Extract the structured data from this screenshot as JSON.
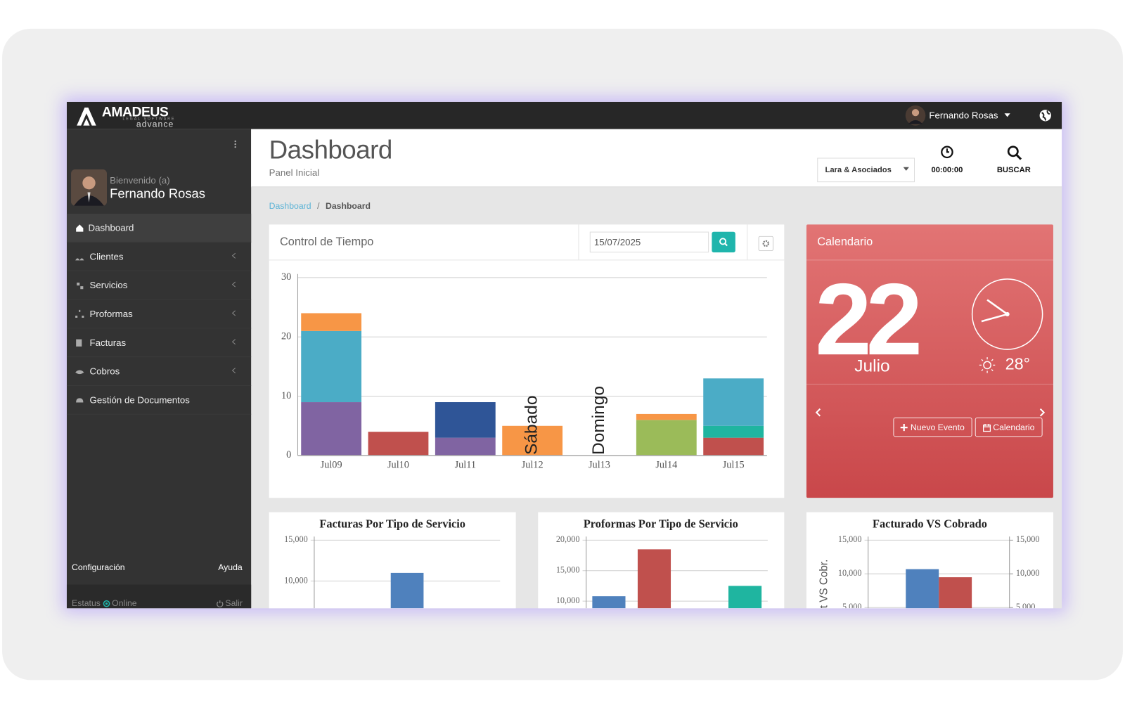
{
  "topbar": {
    "brand": "AMADEUS",
    "tagline": "LEGAL SOFTWARE",
    "edition": "advance",
    "user": "Fernando Rosas"
  },
  "sidebar": {
    "welcome": "Bienvenido (a)",
    "user": "Fernando Rosas",
    "menu": [
      "Dashboard",
      "Clientes",
      "Servicios",
      "Proformas",
      "Facturas",
      "Cobros",
      "Gestión de Documentos"
    ],
    "footer": {
      "settings": "Configuración",
      "help": "Ayuda",
      "status": "Estatus",
      "state": "Online",
      "logout": "Salir"
    }
  },
  "header": {
    "title": "Dashboard",
    "subtitle": "Panel Inicial",
    "company": "Lara & Asociados",
    "timer": "00:00:00",
    "search": "BUSCAR"
  },
  "breadcrumb": {
    "items": [
      "Dashboard",
      "Dashboard"
    ],
    "separator": "/"
  },
  "time_panel": {
    "title": "Control de Tiempo",
    "date": "15/07/2025"
  },
  "calendar": {
    "title": "Calendario",
    "day": 22,
    "month": "Julio",
    "temperature": "28°",
    "buttons": [
      "Nuevo Evento",
      "Calendario"
    ]
  },
  "chart_data": [
    {
      "type": "stacked_bar",
      "categories": [
        "Jul09",
        "Jul10",
        "Jul11",
        "Jul12",
        "Jul13",
        "Jul14",
        "Jul15"
      ],
      "series": [
        {
          "color": "#c0504d",
          "values": [
            null,
            4,
            null,
            null,
            null,
            null,
            3
          ]
        },
        {
          "color": "#8064a2",
          "values": [
            9,
            null,
            3,
            null,
            null,
            null,
            null
          ]
        },
        {
          "color": "#9bbb59",
          "values": [
            null,
            null,
            null,
            null,
            null,
            6,
            null
          ]
        },
        {
          "color": "#1fb5a0",
          "values": [
            null,
            null,
            null,
            null,
            null,
            null,
            2
          ]
        },
        {
          "color": "#4bacc6",
          "values": [
            12,
            null,
            null,
            null,
            null,
            null,
            8
          ]
        },
        {
          "color": "#2f5597",
          "values": [
            null,
            null,
            6,
            null,
            null,
            null,
            null
          ]
        },
        {
          "color": "#f79646",
          "values": [
            3,
            null,
            null,
            5,
            null,
            1,
            null
          ]
        }
      ],
      "ylim": [
        0,
        30
      ],
      "yticks": [
        0,
        10,
        20,
        30
      ],
      "grid": true,
      "annotations": [
        {
          "text": "Sábado",
          "x": "Jul12"
        },
        {
          "text": "Domingo",
          "x": "Jul13"
        }
      ]
    },
    {
      "type": "bar",
      "title": "Facturas Por Tipo de Servicio",
      "categories": [
        null,
        null,
        null
      ],
      "values": [
        null,
        11000,
        null
      ],
      "colors": [
        "#4f81bd",
        "#4f81bd",
        "#4f81bd"
      ],
      "ylim": [
        0,
        15000
      ],
      "yticks": [
        {
          "value": 10000,
          "label": "10,000"
        },
        {
          "value": 15000,
          "label": "15,000"
        }
      ],
      "grid": true
    },
    {
      "type": "bar",
      "title": "Proformas Por Tipo de Servicio",
      "categories": [
        null,
        null,
        null,
        null
      ],
      "values": [
        10800,
        18500,
        null,
        12500
      ],
      "colors": [
        "#4f81bd",
        "#c0504d",
        "#9bbb59",
        "#1fb5a0"
      ],
      "ylim": [
        0,
        20000
      ],
      "yticks": [
        {
          "value": 10000,
          "label": "10,000"
        },
        {
          "value": 15000,
          "label": "15,000"
        },
        {
          "value": 20000,
          "label": "20,000"
        }
      ],
      "grid": true
    },
    {
      "type": "bar",
      "title": "Facturado VS Cobrado",
      "ylabel": "t VS Cobr.",
      "categories": [
        null
      ],
      "series": [
        {
          "color": "#4f81bd",
          "values": [
            10700
          ]
        },
        {
          "color": "#c0504d",
          "values": [
            9500
          ]
        }
      ],
      "ylim": [
        0,
        15000
      ],
      "yticks": [
        {
          "value": 5000,
          "label": "5,000"
        },
        {
          "value": 10000,
          "label": "10,000"
        },
        {
          "value": 15000,
          "label": "15,000"
        }
      ],
      "y2lim": [
        0,
        15000
      ],
      "y2ticks": [
        {
          "value": 5000,
          "label": "5,000"
        },
        {
          "value": 10000,
          "label": "10,000"
        },
        {
          "value": 15000,
          "label": "15,000"
        }
      ],
      "grid": true
    }
  ]
}
